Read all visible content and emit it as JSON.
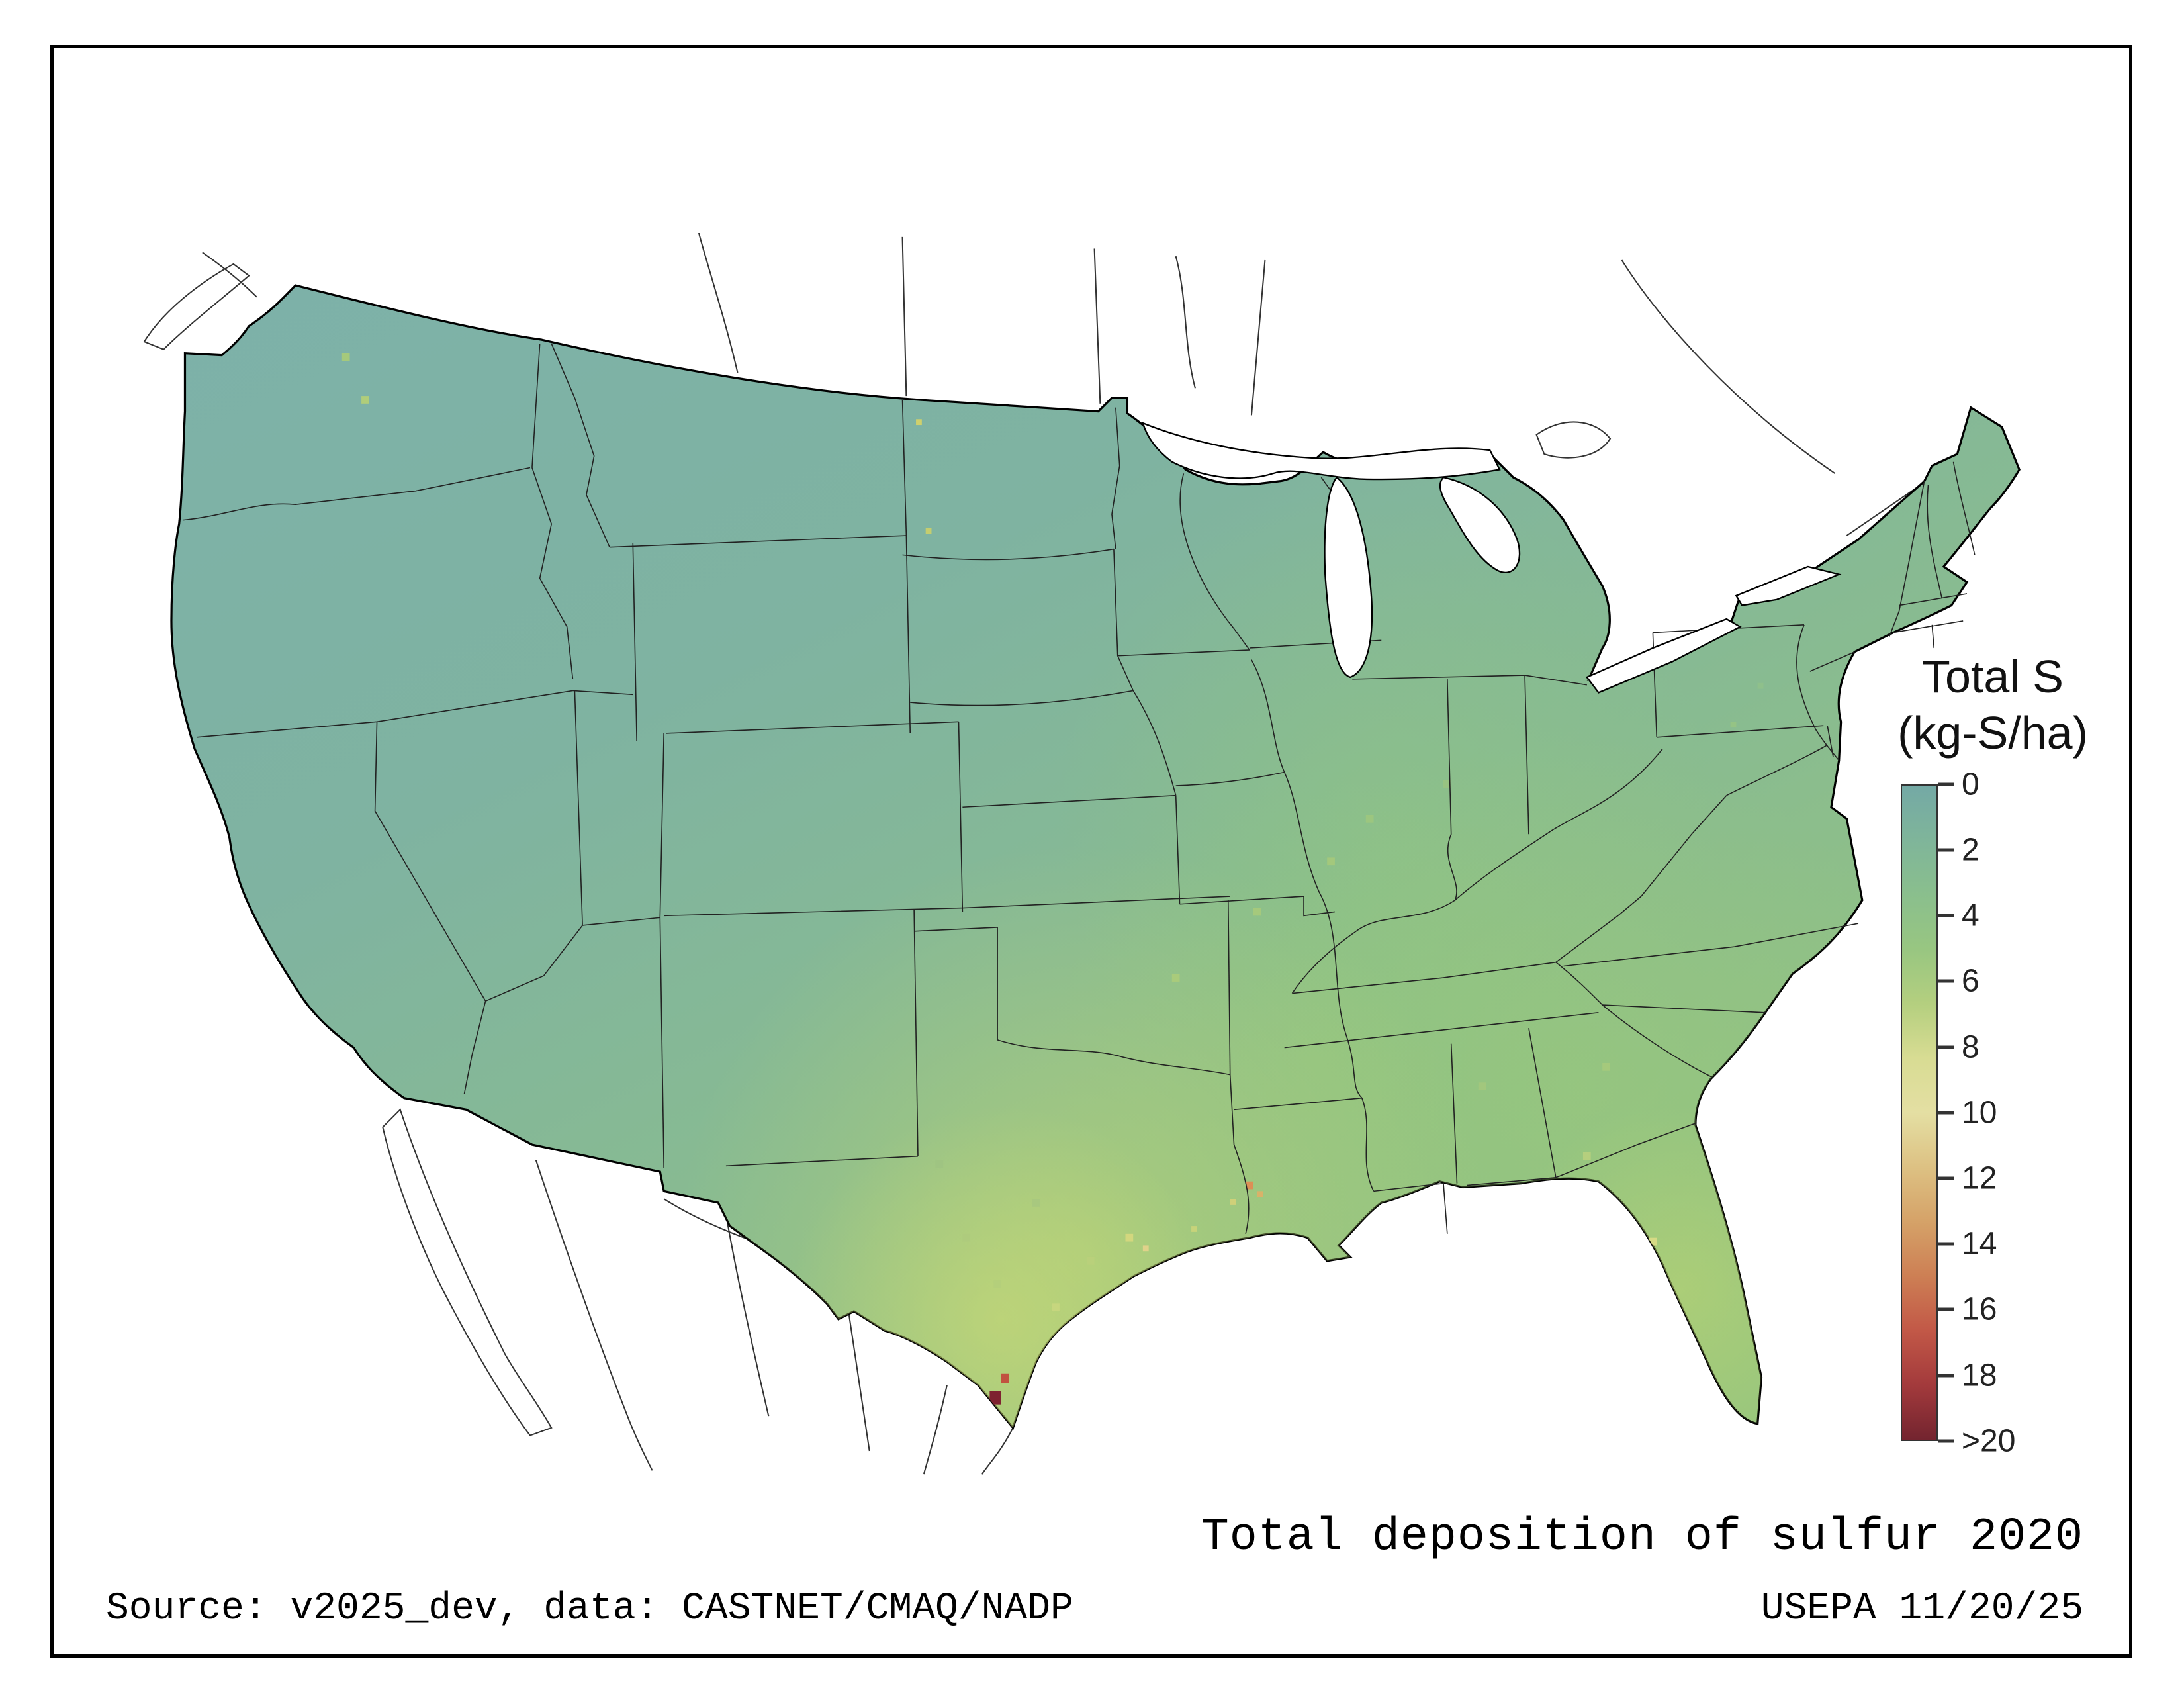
{
  "legend": {
    "title_line1": "Total S",
    "title_line2": "(kg-S/ha)",
    "ticks": [
      "0",
      "2",
      "4",
      "6",
      "8",
      "10",
      "12",
      "14",
      "16",
      "18",
      ">20"
    ],
    "gradient": [
      "#74a9a5",
      "#7fb59a",
      "#8abf8d",
      "#98c681",
      "#b4cf7f",
      "#d8dc93",
      "#e4dfa3",
      "#ddc183",
      "#d5a268",
      "#cd7f54",
      "#c25847",
      "#a33a3c",
      "#73242f"
    ]
  },
  "caption": "Total deposition of sulfur 2020",
  "footer": {
    "source": "Source: v2025_dev, data: CASTNET/CMAQ/NADP",
    "credit": "USEPA 11/20/25"
  },
  "map": {
    "region": "Contiguous United States",
    "variable": "Total S",
    "units": "kg-S/ha",
    "year": "2020",
    "scale_min": "0",
    "scale_max": ">20",
    "low_color": "#74a9a5",
    "high_color": "#73242f",
    "hotspot_note": "dark red maximum on south Texas coast"
  }
}
